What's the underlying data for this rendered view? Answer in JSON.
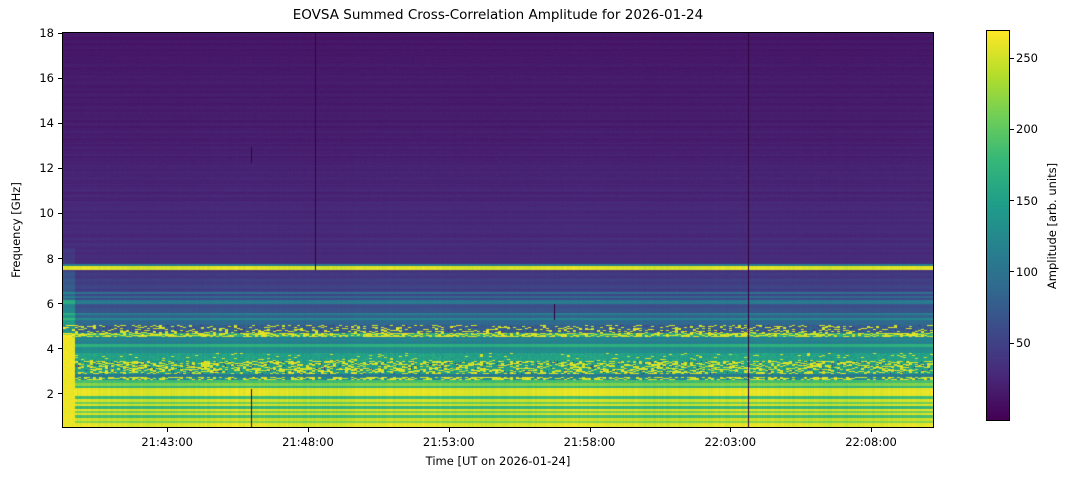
{
  "chart_data": {
    "type": "heatmap",
    "title": "EOVSA Summed Cross-Correlation Amplitude for 2026-01-24",
    "xlabel": "Time [UT on 2026-01-24]",
    "ylabel": "Frequency [GHz]",
    "time_range": [
      "21:39:18",
      "22:10:12"
    ],
    "x_ticks": [
      "21:43:00",
      "21:48:00",
      "21:53:00",
      "21:58:00",
      "22:03:00",
      "22:08:00"
    ],
    "ylim": [
      0.53,
      18
    ],
    "y_ticks": [
      18,
      16,
      14,
      12,
      10,
      8,
      6,
      4,
      2
    ],
    "colorbar": {
      "label": "Amplitude [arb. units]",
      "ticks": [
        250,
        200,
        150,
        100,
        50
      ],
      "vmin": -4,
      "vmax": 269
    },
    "colormap": "viridis",
    "colormap_stops": [
      "#440154",
      "#482878",
      "#3e4989",
      "#31688e",
      "#26828e",
      "#1f9e89",
      "#35b779",
      "#6ece58",
      "#b5de2b",
      "#fde725"
    ],
    "amplitude_range": [
      0,
      268
    ],
    "grid": false,
    "bands": [
      {
        "f0": 18.0,
        "f1": 14.14,
        "v": 13,
        "v1": 17,
        "stripe": 2.5
      },
      {
        "f0": 14.14,
        "f1": 11.49,
        "v": 17,
        "v1": 22,
        "stripe": 3
      },
      {
        "f0": 11.49,
        "f1": 9.27,
        "v": 22,
        "v1": 28,
        "stripe": 3.5
      },
      {
        "f0": 9.27,
        "f1": 7.76,
        "v": 28,
        "v1": 30,
        "stripe": 4
      },
      {
        "f0": 7.76,
        "f1": 7.67,
        "v": 110
      },
      {
        "f0": 7.67,
        "f1": 7.49,
        "v": 255
      },
      {
        "f0": 7.49,
        "f1": 6.83,
        "v": 40,
        "v1": 46,
        "stripe": 5
      },
      {
        "f0": 6.83,
        "f1": 6.52,
        "v": 50,
        "stripe": 5
      },
      {
        "f0": 6.52,
        "f1": 6.43,
        "v": 95
      },
      {
        "f0": 6.43,
        "f1": 6.34,
        "v": 55
      },
      {
        "f0": 6.34,
        "f1": 6.25,
        "v": 88
      },
      {
        "f0": 6.25,
        "f1": 6.17,
        "v": 58
      },
      {
        "f0": 6.17,
        "f1": 5.99,
        "v": 108
      },
      {
        "f0": 5.99,
        "f1": 5.59,
        "v": 62,
        "stripe": 6
      },
      {
        "f0": 5.59,
        "f1": 5.5,
        "v": 112
      },
      {
        "f0": 5.5,
        "f1": 5.37,
        "v": 82
      },
      {
        "f0": 5.37,
        "f1": 5.28,
        "v": 122
      },
      {
        "f0": 5.28,
        "f1": 5.06,
        "v": 92,
        "stripe": 5
      },
      {
        "f0": 5.06,
        "f1": 4.7,
        "v": 78,
        "sp": 0.25,
        "dk": 0.03
      },
      {
        "f0": 4.7,
        "f1": 4.53,
        "v": 165,
        "sp": 0.55
      },
      {
        "f0": 4.53,
        "f1": 4.22,
        "v": 115,
        "stripe": 6
      },
      {
        "f0": 4.22,
        "f1": 4.08,
        "v": 168
      },
      {
        "f0": 4.08,
        "f1": 3.82,
        "v": 128,
        "stripe": 6
      },
      {
        "f0": 3.82,
        "f1": 3.46,
        "v": 152,
        "sp": 0.06
      },
      {
        "f0": 3.46,
        "f1": 2.89,
        "v": 148,
        "sp": 0.42,
        "dk": 0.05
      },
      {
        "f0": 2.89,
        "f1": 2.75,
        "v": 108
      },
      {
        "f0": 2.75,
        "f1": 2.62,
        "v": 125,
        "sp": 0.5
      },
      {
        "f0": 2.62,
        "f1": 2.49,
        "v": 185
      },
      {
        "f0": 2.49,
        "f1": 2.35,
        "v": 215
      },
      {
        "f0": 2.35,
        "f1": 2.26,
        "v": 175
      },
      {
        "f0": 2.26,
        "f1": 1.91,
        "v": 256,
        "stripe": 3
      },
      {
        "f0": 1.91,
        "f1": 1.78,
        "v": 182
      },
      {
        "f0": 1.78,
        "f1": 1.64,
        "v": 250
      },
      {
        "f0": 1.64,
        "f1": 1.55,
        "v": 205
      },
      {
        "f0": 1.55,
        "f1": 1.47,
        "v": 252
      },
      {
        "f0": 1.47,
        "f1": 1.33,
        "v": 175
      },
      {
        "f0": 1.33,
        "f1": 1.24,
        "v": 256
      },
      {
        "f0": 1.24,
        "f1": 1.16,
        "v": 205
      },
      {
        "f0": 1.16,
        "f1": 1.07,
        "v": 252
      },
      {
        "f0": 1.07,
        "f1": 0.93,
        "v": 185
      },
      {
        "f0": 0.93,
        "f1": 0.8,
        "v": 246
      },
      {
        "f0": 0.8,
        "f1": 0.71,
        "v": 215
      },
      {
        "f0": 0.71,
        "f1": 0.53,
        "v": 256
      }
    ],
    "left_edge": {
      "duration_s": 26,
      "zones": [
        {
          "f0": 4.55,
          "f1": 0.53,
          "value": 262
        },
        {
          "f0": 6.2,
          "f1": 4.55,
          "boost": 55
        },
        {
          "f0": 7.49,
          "f1": 6.2,
          "boost": 25
        },
        {
          "f0": 8.5,
          "f1": 7.76,
          "boost": 12
        }
      ]
    },
    "events": [
      {
        "time": "21:48:14",
        "f0": 18.0,
        "f1": 7.49
      },
      {
        "time": "21:45:58",
        "f0": 12.93,
        "f1": 12.24
      },
      {
        "time": "21:45:58",
        "f0": 2.22,
        "f1": 0.53
      },
      {
        "time": "21:56:45",
        "f0": 5.99,
        "f1": 5.28
      },
      {
        "time": "22:03:38",
        "f0": 18.0,
        "f1": 0.53
      }
    ]
  }
}
